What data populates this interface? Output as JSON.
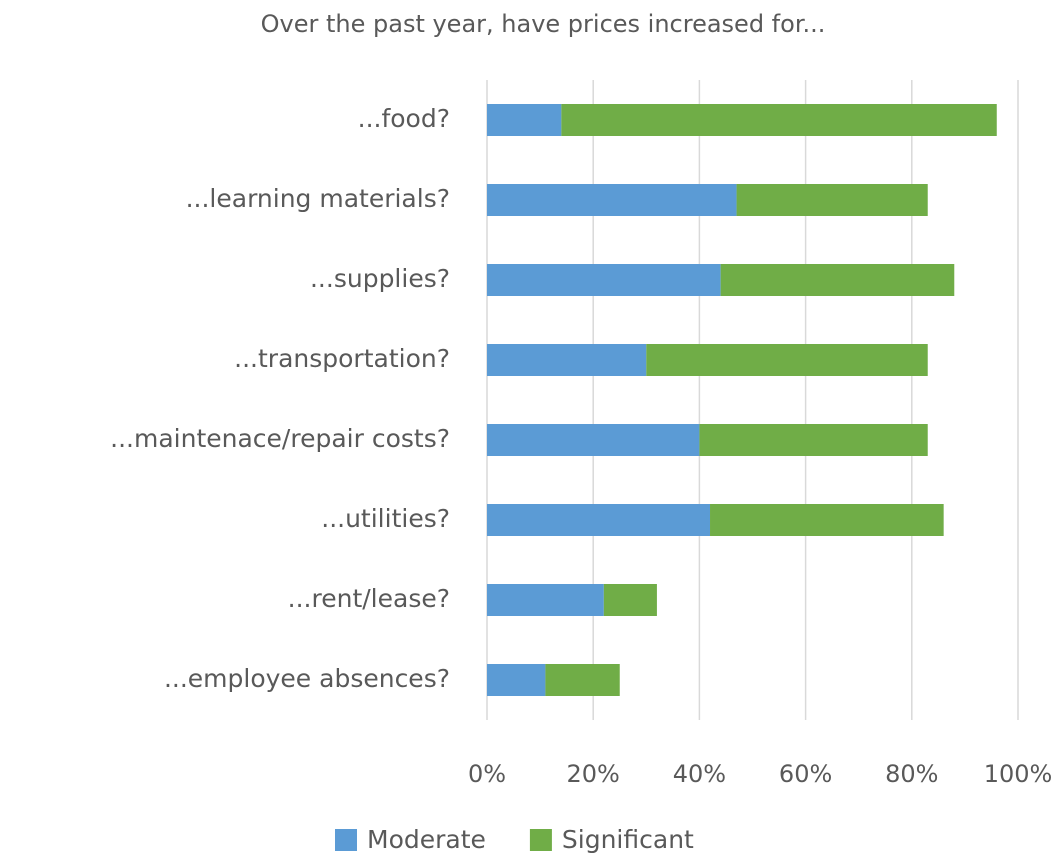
{
  "chart_data": {
    "type": "stacked-bar-horizontal",
    "title": "Over the past year, have prices increased for...",
    "categories": [
      "...food?",
      "...learning materials?",
      "...supplies?",
      "...transportation?",
      "...maintenace/repair costs?",
      "...utilities?",
      "...rent/lease?",
      "...employee absences?"
    ],
    "series": [
      {
        "name": "Moderate",
        "color": "#5b9bd5",
        "values": [
          14,
          47,
          44,
          30,
          40,
          42,
          22,
          11
        ]
      },
      {
        "name": "Significant",
        "color": "#70ad47",
        "values": [
          82,
          36,
          44,
          53,
          43,
          44,
          10,
          14
        ]
      }
    ],
    "xlim": [
      0,
      100
    ],
    "xticks": [
      {
        "value": 0,
        "label": "0%"
      },
      {
        "value": 20,
        "label": "20%"
      },
      {
        "value": 40,
        "label": "40%"
      },
      {
        "value": 60,
        "label": "60%"
      },
      {
        "value": 80,
        "label": "80%"
      },
      {
        "value": 100,
        "label": "100%"
      }
    ],
    "grid": true,
    "legend": "bottom"
  }
}
